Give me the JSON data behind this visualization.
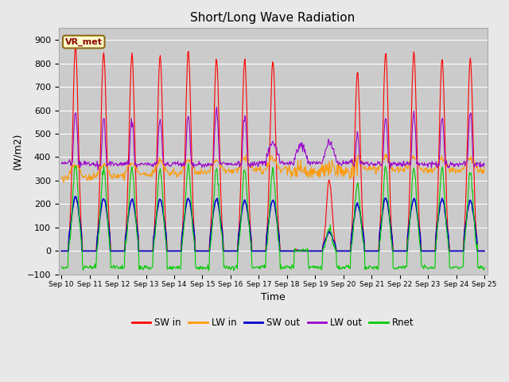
{
  "title": "Short/Long Wave Radiation",
  "xlabel": "Time",
  "ylabel": "(W/m2)",
  "ylim": [
    -100,
    950
  ],
  "background_color": "#e8e8e8",
  "plot_bg_color": "#cbcbcb",
  "station_label": "VR_met",
  "x_tick_labels": [
    "Sep 10",
    "Sep 11",
    "Sep 12",
    "Sep 13",
    "Sep 14",
    "Sep 15",
    "Sep 16",
    "Sep 17",
    "Sep 18",
    "Sep 19",
    "Sep 20",
    "Sep 21",
    "Sep 22",
    "Sep 23",
    "Sep 24",
    "Sep 25"
  ],
  "colors": {
    "SW_in": "#ff0000",
    "LW_in": "#ff9900",
    "SW_out": "#0000cc",
    "LW_out": "#9900cc",
    "Rnet": "#00cc00"
  },
  "legend_labels": [
    "SW in",
    "LW in",
    "SW out",
    "LW out",
    "Rnet"
  ]
}
